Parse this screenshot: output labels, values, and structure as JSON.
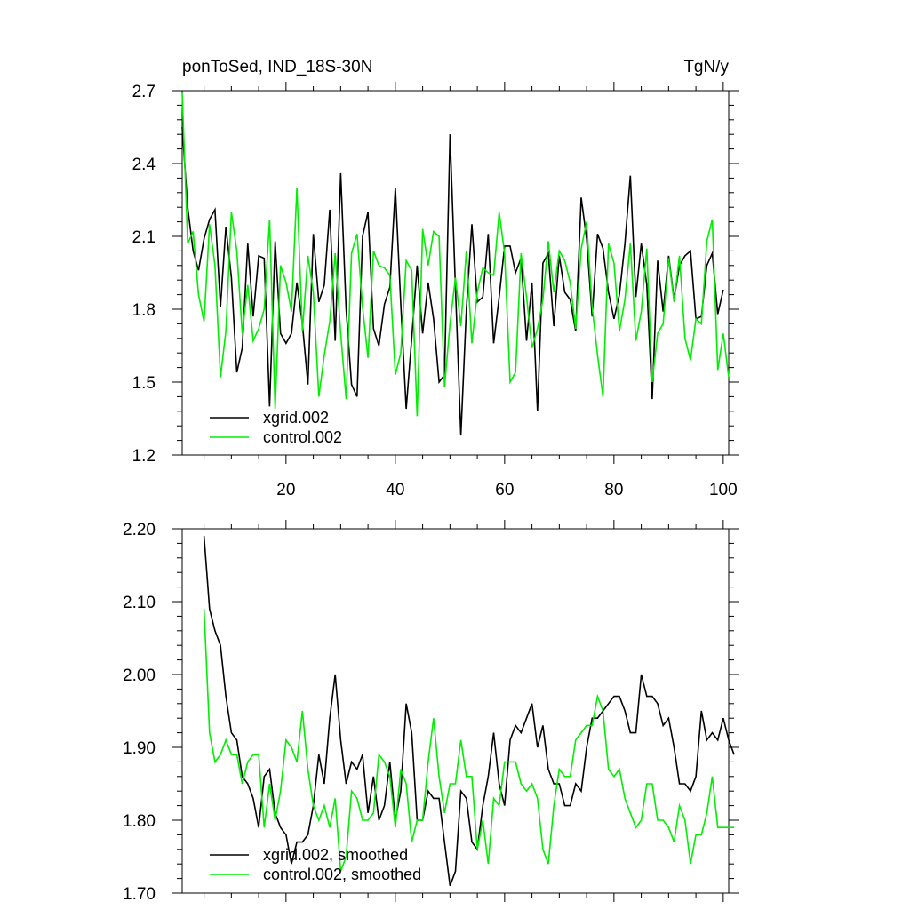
{
  "chart_data": [
    {
      "type": "line",
      "title": "ponToSed, IND_18S-30N",
      "units": "TgN/y",
      "xlim": [
        1,
        101
      ],
      "ylim": [
        1.2,
        2.7
      ],
      "x_ticks": [
        20,
        40,
        60,
        80,
        100
      ],
      "x_tick_labels": [
        "20",
        "40",
        "60",
        "80",
        "100"
      ],
      "y_ticks": [
        1.2,
        1.5,
        1.8,
        2.1,
        2.4,
        2.7
      ],
      "y_tick_labels": [
        "1.2",
        "1.5",
        "1.8",
        "2.1",
        "2.4",
        "2.7"
      ],
      "legend_position": "bottom-left",
      "series": [
        {
          "name": "xgrid.002",
          "color": "#000000",
          "x_start": 1,
          "values": [
            2.55,
            2.22,
            2.04,
            1.96,
            2.09,
            2.17,
            2.21,
            1.81,
            2.14,
            1.93,
            1.54,
            1.64,
            2.07,
            1.77,
            2.02,
            2.01,
            1.4,
            2.08,
            1.7,
            1.66,
            1.7,
            1.91,
            1.74,
            1.49,
            2.11,
            1.83,
            1.9,
            2.21,
            1.67,
            2.36,
            1.8,
            1.49,
            1.44,
            2.1,
            2.2,
            1.72,
            1.65,
            1.82,
            1.89,
            2.3,
            1.82,
            1.39,
            1.68,
            1.98,
            1.7,
            1.91,
            1.76,
            1.5,
            1.53,
            2.52,
            1.89,
            1.28,
            1.8,
            2.15,
            1.83,
            1.85,
            2.11,
            1.66,
            1.85,
            2.06,
            2.06,
            1.95,
            2.01,
            1.67,
            1.91,
            1.38,
            1.99,
            2.03,
            1.73,
            2.02,
            1.87,
            1.84,
            1.71,
            2.26,
            2.09,
            1.77,
            2.11,
            2.05,
            1.87,
            1.76,
            1.86,
            2.07,
            2.35,
            1.85,
            2.07,
            1.9,
            1.43,
            2.0,
            1.79,
            2.02,
            1.84,
            1.98,
            2.02,
            2.04,
            1.76,
            1.77,
            1.98,
            2.03,
            1.78,
            1.88
          ]
        },
        {
          "name": "control.002",
          "color": "#00ee00",
          "x_start": 1,
          "values": [
            2.69,
            2.07,
            2.12,
            1.86,
            1.75,
            2.15,
            1.98,
            1.52,
            1.71,
            2.2,
            2.04,
            1.7,
            1.9,
            1.67,
            1.72,
            1.8,
            2.17,
            1.39,
            1.98,
            1.91,
            1.79,
            2.3,
            1.71,
            2.02,
            1.87,
            1.44,
            1.61,
            1.75,
            2.03,
            1.7,
            1.43,
            2.03,
            2.11,
            1.81,
            1.6,
            2.04,
            1.98,
            1.97,
            1.94,
            1.53,
            1.62,
            2.0,
            1.96,
            1.36,
            2.13,
            1.98,
            2.12,
            2.1,
            1.48,
            1.74,
            1.93,
            1.73,
            2.04,
            1.66,
            1.87,
            1.97,
            1.95,
            1.94,
            2.2,
            2.03,
            1.5,
            1.54,
            2.03,
            1.85,
            1.64,
            1.72,
            1.84,
            2.08,
            1.87,
            2.04,
            2.0,
            1.91,
            1.72,
            2.05,
            2.16,
            1.81,
            1.61,
            1.44,
            2.07,
            1.99,
            1.71,
            1.84,
            2.07,
            1.67,
            1.79,
            2.05,
            1.5,
            1.7,
            1.74,
            2.01,
            1.83,
            2.02,
            1.68,
            1.59,
            1.76,
            1.74,
            2.08,
            2.17,
            1.55,
            1.7,
            1.52
          ]
        }
      ]
    },
    {
      "type": "line",
      "title": "",
      "xlim": [
        1,
        101
      ],
      "ylim": [
        1.7,
        2.2
      ],
      "x_ticks": [
        20,
        40,
        60,
        80,
        100
      ],
      "y_ticks": [
        1.7,
        1.8,
        1.9,
        2.0,
        2.1,
        2.2
      ],
      "y_tick_labels": [
        "1.70",
        "1.80",
        "1.90",
        "2.00",
        "2.10",
        "2.20"
      ],
      "legend_position": "bottom-left",
      "series": [
        {
          "name": "xgrid.002, smoothed",
          "color": "#000000",
          "x_start": 5,
          "values": [
            2.19,
            2.09,
            2.06,
            2.04,
            1.97,
            1.92,
            1.91,
            1.86,
            1.85,
            1.83,
            1.79,
            1.86,
            1.87,
            1.81,
            1.79,
            1.78,
            1.74,
            1.77,
            1.77,
            1.78,
            1.82,
            1.89,
            1.85,
            1.94,
            2.0,
            1.91,
            1.85,
            1.88,
            1.87,
            1.89,
            1.81,
            1.86,
            1.8,
            1.82,
            1.88,
            1.8,
            1.84,
            1.96,
            1.92,
            1.8,
            1.8,
            1.84,
            1.83,
            1.83,
            1.77,
            1.71,
            1.73,
            1.84,
            1.83,
            1.77,
            1.76,
            1.82,
            1.86,
            1.92,
            1.85,
            1.82,
            1.91,
            1.93,
            1.92,
            1.94,
            1.96,
            1.9,
            1.93,
            1.87,
            1.85,
            1.85,
            1.82,
            1.82,
            1.85,
            1.84,
            1.9,
            1.94,
            1.94,
            1.95,
            1.96,
            1.97,
            1.97,
            1.95,
            1.92,
            1.92,
            2.0,
            1.97,
            1.97,
            1.96,
            1.93,
            1.94,
            1.9,
            1.85,
            1.85,
            1.84,
            1.86,
            1.95,
            1.91,
            1.92,
            1.91,
            1.94,
            1.91,
            1.89
          ]
        },
        {
          "name": "control.002, smoothed",
          "color": "#00ee00",
          "x_start": 5,
          "values": [
            2.09,
            1.92,
            1.88,
            1.89,
            1.91,
            1.89,
            1.89,
            1.85,
            1.88,
            1.89,
            1.89,
            1.79,
            1.85,
            1.8,
            1.84,
            1.91,
            1.9,
            1.88,
            1.95,
            1.87,
            1.82,
            1.8,
            1.82,
            1.79,
            1.83,
            1.73,
            1.75,
            1.84,
            1.83,
            1.8,
            1.8,
            1.81,
            1.89,
            1.88,
            1.86,
            1.79,
            1.87,
            1.85,
            1.77,
            1.8,
            1.8,
            1.88,
            1.94,
            1.86,
            1.81,
            1.85,
            1.85,
            1.91,
            1.86,
            1.86,
            1.76,
            1.8,
            1.74,
            1.83,
            1.82,
            1.88,
            1.88,
            1.88,
            1.85,
            1.84,
            1.85,
            1.83,
            1.76,
            1.74,
            1.82,
            1.87,
            1.86,
            1.86,
            1.91,
            1.92,
            1.93,
            1.93,
            1.97,
            1.95,
            1.87,
            1.86,
            1.87,
            1.83,
            1.81,
            1.79,
            1.8,
            1.85,
            1.85,
            1.8,
            1.8,
            1.79,
            1.77,
            1.82,
            1.8,
            1.74,
            1.78,
            1.78,
            1.81,
            1.86,
            1.79,
            1.79,
            1.79,
            1.79
          ]
        }
      ]
    }
  ]
}
